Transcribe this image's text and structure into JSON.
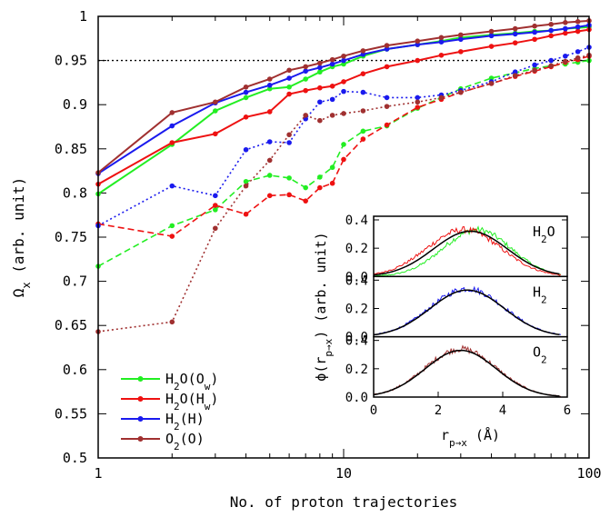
{
  "chart_data": [
    {
      "type": "line",
      "xlabel": "No. of proton trajectories",
      "ylabel": "Ω_x (arb. unit)",
      "x_scale": "log",
      "xlim": [
        1,
        100
      ],
      "ylim": [
        0.5,
        1.0
      ],
      "x_ticks": [
        {
          "value": 1,
          "label": "1"
        },
        {
          "value": 10,
          "label": "10"
        },
        {
          "value": 100,
          "label": "100"
        }
      ],
      "y_ticks": [
        {
          "value": 0.5,
          "label": "0.5"
        },
        {
          "value": 0.55,
          "label": "0.55"
        },
        {
          "value": 0.6,
          "label": "0.6"
        },
        {
          "value": 0.65,
          "label": "0.65"
        },
        {
          "value": 0.7,
          "label": "0.7"
        },
        {
          "value": 0.75,
          "label": "0.75"
        },
        {
          "value": 0.8,
          "label": "0.8"
        },
        {
          "value": 0.85,
          "label": "0.85"
        },
        {
          "value": 0.9,
          "label": "0.9"
        },
        {
          "value": 0.95,
          "label": "0.95"
        },
        {
          "value": 1.0,
          "label": "1"
        }
      ],
      "reference_line": {
        "y": 0.95,
        "style": "dotted"
      },
      "legend_position": "bottom-left",
      "legend": [
        {
          "base": "H",
          "sub1": "2",
          "mid": "O(O",
          "sub2": "w",
          "tail": ")",
          "color": "#22ee22"
        },
        {
          "base": "H",
          "sub1": "2",
          "mid": "O(H",
          "sub2": "w",
          "tail": ")",
          "color": "#ee1111"
        },
        {
          "base": "H",
          "sub1": "2",
          "mid": "(H)",
          "sub2": "",
          "tail": "",
          "color": "#1a1aee"
        },
        {
          "base": "O",
          "sub1": "2",
          "mid": "(O)",
          "sub2": "",
          "tail": "",
          "color": "#a03030"
        }
      ],
      "series": [
        {
          "color": "#22ee22",
          "style": "solid",
          "marker": "circle",
          "x": [
            1,
            2,
            3,
            4,
            5,
            6,
            7,
            8,
            9,
            10,
            12,
            15,
            20,
            25,
            30,
            40,
            50,
            60,
            70,
            80,
            90,
            100
          ],
          "y": [
            0.799,
            0.855,
            0.893,
            0.908,
            0.918,
            0.92,
            0.929,
            0.937,
            0.943,
            0.946,
            0.955,
            0.963,
            0.968,
            0.972,
            0.976,
            0.979,
            0.981,
            0.983,
            0.984,
            0.986,
            0.987,
            0.988
          ]
        },
        {
          "color": "#ee1111",
          "style": "solid",
          "marker": "circle",
          "x": [
            1,
            2,
            3,
            4,
            5,
            6,
            7,
            8,
            9,
            10,
            12,
            15,
            20,
            25,
            30,
            40,
            50,
            60,
            70,
            80,
            90,
            100
          ],
          "y": [
            0.81,
            0.857,
            0.867,
            0.886,
            0.892,
            0.912,
            0.916,
            0.919,
            0.921,
            0.926,
            0.935,
            0.943,
            0.95,
            0.956,
            0.96,
            0.966,
            0.97,
            0.974,
            0.978,
            0.981,
            0.983,
            0.985
          ]
        },
        {
          "color": "#1a1aee",
          "style": "solid",
          "marker": "circle",
          "x": [
            1,
            2,
            3,
            4,
            5,
            6,
            7,
            8,
            9,
            10,
            12,
            15,
            20,
            25,
            30,
            40,
            50,
            60,
            70,
            80,
            90,
            100
          ],
          "y": [
            0.822,
            0.876,
            0.902,
            0.914,
            0.922,
            0.93,
            0.938,
            0.942,
            0.946,
            0.95,
            0.957,
            0.963,
            0.968,
            0.971,
            0.974,
            0.978,
            0.98,
            0.982,
            0.984,
            0.986,
            0.988,
            0.99
          ]
        },
        {
          "color": "#a03030",
          "style": "solid",
          "marker": "circle",
          "x": [
            1,
            2,
            3,
            4,
            5,
            6,
            7,
            8,
            9,
            10,
            12,
            15,
            20,
            25,
            30,
            40,
            50,
            60,
            70,
            80,
            90,
            100
          ],
          "y": [
            0.823,
            0.891,
            0.903,
            0.92,
            0.929,
            0.939,
            0.943,
            0.947,
            0.951,
            0.955,
            0.961,
            0.967,
            0.972,
            0.976,
            0.979,
            0.983,
            0.986,
            0.989,
            0.991,
            0.993,
            0.994,
            0.995
          ]
        },
        {
          "color": "#22ee22",
          "style": "dashed",
          "marker": "circle",
          "x": [
            1,
            2,
            3,
            4,
            5,
            6,
            7,
            8,
            9,
            10,
            12,
            15,
            20,
            25,
            30,
            40,
            50,
            60,
            70,
            80,
            90,
            100
          ],
          "y": [
            0.717,
            0.763,
            0.781,
            0.813,
            0.82,
            0.817,
            0.806,
            0.818,
            0.829,
            0.855,
            0.87,
            0.876,
            0.896,
            0.908,
            0.918,
            0.93,
            0.936,
            0.941,
            0.944,
            0.946,
            0.948,
            0.95
          ]
        },
        {
          "color": "#ee1111",
          "style": "dashed",
          "marker": "circle",
          "x": [
            1,
            2,
            3,
            4,
            5,
            6,
            7,
            8,
            9,
            10,
            12,
            15,
            20,
            25,
            30,
            40,
            50,
            60,
            70,
            80,
            90,
            100
          ],
          "y": [
            0.765,
            0.751,
            0.786,
            0.776,
            0.797,
            0.798,
            0.791,
            0.806,
            0.811,
            0.838,
            0.861,
            0.877,
            0.897,
            0.906,
            0.914,
            0.924,
            0.932,
            0.938,
            0.943,
            0.948,
            0.951,
            0.955
          ]
        },
        {
          "color": "#1a1aee",
          "style": "dotted",
          "marker": "circle",
          "x": [
            1,
            2,
            3,
            4,
            5,
            6,
            7,
            8,
            9,
            10,
            12,
            15,
            20,
            25,
            30,
            40,
            50,
            60,
            70,
            80,
            90,
            100
          ],
          "y": [
            0.763,
            0.808,
            0.797,
            0.849,
            0.858,
            0.857,
            0.884,
            0.903,
            0.906,
            0.915,
            0.914,
            0.908,
            0.908,
            0.911,
            0.916,
            0.926,
            0.937,
            0.945,
            0.95,
            0.955,
            0.96,
            0.965
          ]
        },
        {
          "color": "#a03030",
          "style": "dotted",
          "marker": "circle",
          "x": [
            1,
            2,
            3,
            4,
            5,
            6,
            7,
            8,
            9,
            10,
            12,
            15,
            20,
            25,
            30,
            40,
            50,
            60,
            70,
            80,
            90,
            100
          ],
          "y": [
            0.643,
            0.654,
            0.76,
            0.808,
            0.837,
            0.866,
            0.888,
            0.882,
            0.888,
            0.89,
            0.893,
            0.898,
            0.903,
            0.908,
            0.914,
            0.924,
            0.933,
            0.939,
            0.944,
            0.949,
            0.953,
            0.956
          ]
        }
      ]
    },
    {
      "type": "line",
      "xlabel": "r_p→x (Å)",
      "ylabel": "ϕ(r_p→x) (arb. unit)",
      "xlim": [
        0,
        6
      ],
      "ylim": [
        0,
        0.4
      ],
      "x_ticks": [
        {
          "value": 0,
          "label": "0"
        },
        {
          "value": 2,
          "label": "2"
        },
        {
          "value": 4,
          "label": "4"
        },
        {
          "value": 6,
          "label": "6"
        }
      ],
      "y_ticks": [
        {
          "value": 0,
          "label": "0.0"
        },
        {
          "value": 0.2,
          "label": "0.2"
        },
        {
          "value": 0.4,
          "label": "0.4"
        }
      ],
      "panels": [
        {
          "label_base": "H",
          "label_sub": "2",
          "label_tail": "O",
          "series": [
            {
              "color": "#22ee22",
              "noisy": true,
              "peak_x": 3.2,
              "peak_y": 0.33,
              "sigma": 1.05,
              "x_end": 5.8
            },
            {
              "color": "#ee1111",
              "noisy": true,
              "peak_x": 2.8,
              "peak_y": 0.33,
              "sigma": 1.15,
              "x_end": 5.8
            },
            {
              "color": "#000000",
              "noisy": false,
              "peak_x": 3.0,
              "peak_y": 0.32,
              "sigma": 1.15,
              "x_end": 5.8
            }
          ]
        },
        {
          "label_base": "H",
          "label_sub": "2",
          "label_tail": "",
          "series": [
            {
              "color": "#1a1aee",
              "noisy": true,
              "peak_x": 2.9,
              "peak_y": 0.34,
              "sigma": 1.15,
              "x_end": 5.8
            },
            {
              "color": "#000000",
              "noisy": false,
              "peak_x": 2.9,
              "peak_y": 0.33,
              "sigma": 1.15,
              "x_end": 5.8
            }
          ]
        },
        {
          "label_base": "O",
          "label_sub": "2",
          "label_tail": "",
          "series": [
            {
              "color": "#a03030",
              "noisy": true,
              "peak_x": 2.7,
              "peak_y": 0.34,
              "sigma": 1.1,
              "x_end": 5.8
            },
            {
              "color": "#000000",
              "noisy": false,
              "peak_x": 2.7,
              "peak_y": 0.33,
              "sigma": 1.1,
              "x_end": 5.8
            }
          ]
        }
      ]
    }
  ]
}
